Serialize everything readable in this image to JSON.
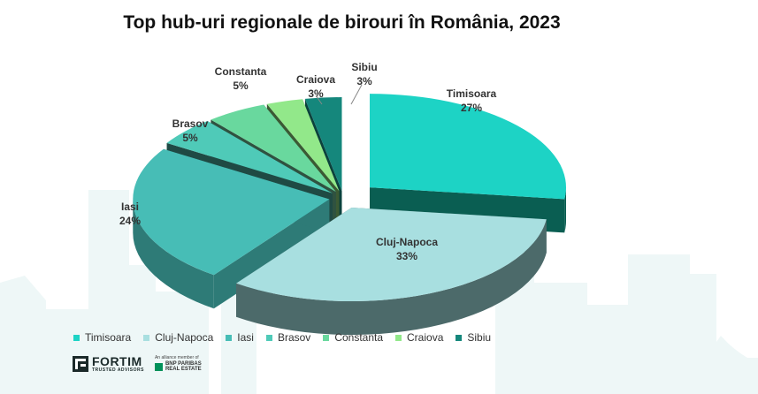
{
  "chart_data": {
    "type": "pie",
    "title": "Top hub-uri regionale de birouri în România, 2023",
    "slices": [
      {
        "name": "Timisoara",
        "value": 27,
        "label": "27%",
        "color": "#1dd3c5",
        "color_side": "#0a5e52"
      },
      {
        "name": "Cluj-Napoca",
        "value": 33,
        "label": "33%",
        "color": "#a8dfe0",
        "color_side": "#4c6a6a"
      },
      {
        "name": "Iasi",
        "value": 24,
        "label": "24%",
        "color": "#47bdb6",
        "color_side": "#2e7b77"
      },
      {
        "name": "Brasov",
        "value": 5,
        "label": "5%",
        "color": "#4fcab8",
        "color_side": "#1f4a44"
      },
      {
        "name": "Constanta",
        "value": 5,
        "label": "5%",
        "color": "#69d89e",
        "color_side": "#2f5240"
      },
      {
        "name": "Craiova",
        "value": 3,
        "label": "3%",
        "color": "#92e88a",
        "color_side": "#3b5a34"
      },
      {
        "name": "Sibiu",
        "value": 3,
        "label": "3%",
        "color": "#15877c",
        "color_side": "#0b423d"
      }
    ],
    "legend_position": "bottom",
    "exploded": true,
    "three_d": true
  },
  "footer": {
    "brand_name": "FORTIM",
    "brand_tagline": "TRUSTED ADVISORS",
    "alliance_text": "An alliance member of",
    "partner_line1": "BNP PARIBAS",
    "partner_line2": "REAL ESTATE",
    "brand_icon": "fortim-logo-icon",
    "partner_icon": "bnp-paribas-logo-icon"
  }
}
